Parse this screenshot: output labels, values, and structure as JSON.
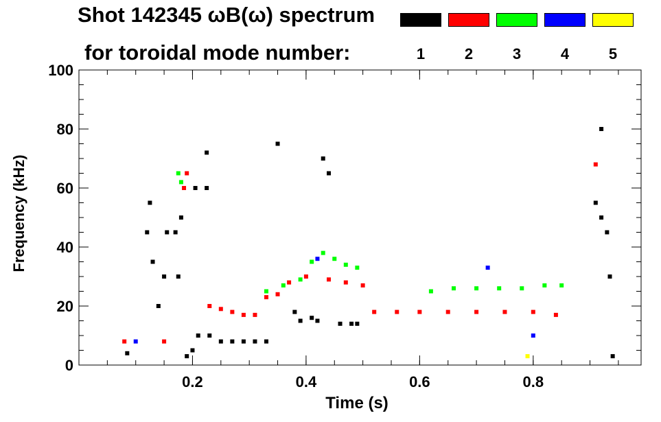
{
  "title_line1": "Shot 142345 ωB(ω) spectrum",
  "title_line2": "for toroidal mode number:",
  "legend": [
    {
      "label": "1",
      "color": "#000000"
    },
    {
      "label": "2",
      "color": "#ff0000"
    },
    {
      "label": "3",
      "color": "#00ff00"
    },
    {
      "label": "4",
      "color": "#0000ff"
    },
    {
      "label": "5",
      "color": "#ffff00"
    }
  ],
  "chart_data": {
    "type": "scatter",
    "xlabel": "Time (s)",
    "ylabel": "Frequency (kHz)",
    "xlim": [
      0.0,
      0.99
    ],
    "ylim": [
      0,
      100
    ],
    "xticks": [
      0.2,
      0.4,
      0.6,
      0.8
    ],
    "xtick_labels": [
      "0.2",
      "0.4",
      "0.6",
      "0.8"
    ],
    "yticks": [
      0,
      20,
      40,
      60,
      80,
      100
    ],
    "ytick_labels": [
      "0",
      "20",
      "40",
      "60",
      "80",
      "100"
    ],
    "grid": false,
    "series": [
      {
        "name": "1",
        "color": "#000000",
        "points": [
          [
            0.085,
            4
          ],
          [
            0.12,
            45
          ],
          [
            0.125,
            55
          ],
          [
            0.13,
            35
          ],
          [
            0.14,
            20
          ],
          [
            0.15,
            30
          ],
          [
            0.155,
            45
          ],
          [
            0.17,
            45
          ],
          [
            0.175,
            30
          ],
          [
            0.18,
            50
          ],
          [
            0.19,
            3
          ],
          [
            0.2,
            5
          ],
          [
            0.205,
            60
          ],
          [
            0.21,
            10
          ],
          [
            0.225,
            72
          ],
          [
            0.225,
            60
          ],
          [
            0.23,
            10
          ],
          [
            0.25,
            8
          ],
          [
            0.27,
            8
          ],
          [
            0.29,
            8
          ],
          [
            0.31,
            8
          ],
          [
            0.33,
            8
          ],
          [
            0.35,
            75
          ],
          [
            0.38,
            18
          ],
          [
            0.39,
            15
          ],
          [
            0.41,
            16
          ],
          [
            0.42,
            15
          ],
          [
            0.43,
            70
          ],
          [
            0.44,
            65
          ],
          [
            0.46,
            14
          ],
          [
            0.48,
            14
          ],
          [
            0.49,
            14
          ],
          [
            0.91,
            55
          ],
          [
            0.92,
            50
          ],
          [
            0.93,
            45
          ],
          [
            0.935,
            30
          ],
          [
            0.92,
            80
          ],
          [
            0.94,
            3
          ]
        ]
      },
      {
        "name": "2",
        "color": "#ff0000",
        "points": [
          [
            0.08,
            8
          ],
          [
            0.15,
            8
          ],
          [
            0.185,
            60
          ],
          [
            0.19,
            65
          ],
          [
            0.23,
            20
          ],
          [
            0.25,
            19
          ],
          [
            0.27,
            18
          ],
          [
            0.29,
            17
          ],
          [
            0.31,
            17
          ],
          [
            0.33,
            23
          ],
          [
            0.35,
            24
          ],
          [
            0.37,
            28
          ],
          [
            0.4,
            30
          ],
          [
            0.44,
            29
          ],
          [
            0.47,
            28
          ],
          [
            0.5,
            27
          ],
          [
            0.52,
            18
          ],
          [
            0.56,
            18
          ],
          [
            0.6,
            18
          ],
          [
            0.65,
            18
          ],
          [
            0.7,
            18
          ],
          [
            0.75,
            18
          ],
          [
            0.8,
            18
          ],
          [
            0.84,
            17
          ],
          [
            0.91,
            68
          ]
        ]
      },
      {
        "name": "3",
        "color": "#00ff00",
        "points": [
          [
            0.175,
            65
          ],
          [
            0.18,
            62
          ],
          [
            0.33,
            25
          ],
          [
            0.36,
            27
          ],
          [
            0.39,
            29
          ],
          [
            0.41,
            35
          ],
          [
            0.43,
            38
          ],
          [
            0.45,
            36
          ],
          [
            0.47,
            34
          ],
          [
            0.49,
            33
          ],
          [
            0.62,
            25
          ],
          [
            0.66,
            26
          ],
          [
            0.7,
            26
          ],
          [
            0.74,
            26
          ],
          [
            0.78,
            26
          ],
          [
            0.82,
            27
          ],
          [
            0.85,
            27
          ]
        ]
      },
      {
        "name": "4",
        "color": "#0000ff",
        "points": [
          [
            0.1,
            8
          ],
          [
            0.42,
            36
          ],
          [
            0.72,
            33
          ],
          [
            0.8,
            10
          ]
        ]
      },
      {
        "name": "5",
        "color": "#ffff00",
        "points": [
          [
            0.79,
            3
          ]
        ]
      }
    ]
  }
}
